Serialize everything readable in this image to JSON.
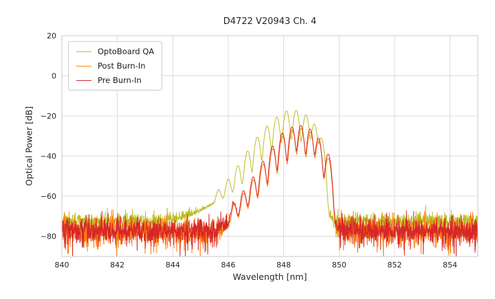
{
  "chart_data": {
    "type": "line",
    "title": "D4722 V20943 Ch. 4",
    "xlabel": "Wavelength [nm]",
    "ylabel": "Optical Power [dB]",
    "xlim": [
      840,
      855
    ],
    "ylim": [
      -90,
      20
    ],
    "grid": true,
    "legend_position": "upper left",
    "xticks": [
      {
        "v": 840,
        "label": "840"
      },
      {
        "v": 842,
        "label": "842"
      },
      {
        "v": 844,
        "label": "844"
      },
      {
        "v": 846,
        "label": "846"
      },
      {
        "v": 848,
        "label": "848"
      },
      {
        "v": 850,
        "label": "850"
      },
      {
        "v": 852,
        "label": "852"
      },
      {
        "v": 854,
        "label": "854"
      }
    ],
    "yticks": [
      {
        "v": 20,
        "label": "20"
      },
      {
        "v": 0,
        "label": "0"
      },
      {
        "v": -20,
        "label": "−20"
      },
      {
        "v": -40,
        "label": "−40"
      },
      {
        "v": -60,
        "label": "−60"
      },
      {
        "v": -80,
        "label": "−80"
      }
    ],
    "series": [
      {
        "name": "OptoBoard QA",
        "color": "#bcbd22",
        "mode_width": 0.062,
        "modes": [
          [
            845.65,
            -58
          ],
          [
            846.0,
            -52
          ],
          [
            846.35,
            -45
          ],
          [
            846.7,
            -37.5
          ],
          [
            847.05,
            -30.5
          ],
          [
            847.4,
            -25
          ],
          [
            847.75,
            -20.5
          ],
          [
            848.1,
            -17.5
          ],
          [
            848.45,
            -17.2
          ],
          [
            848.8,
            -19.5
          ],
          [
            849.1,
            -24
          ],
          [
            849.35,
            -31
          ]
        ],
        "pedestal": [
          [
            843.8,
            -78
          ],
          [
            844.6,
            -72
          ],
          [
            845.2,
            -66.5
          ],
          [
            845.7,
            -62.5
          ],
          [
            846.1,
            -60
          ],
          [
            846.5,
            -58
          ],
          [
            849.2,
            -60
          ],
          [
            849.55,
            -68
          ],
          [
            849.8,
            -78
          ]
        ],
        "dropouts": [],
        "noise": {
          "mean": -72.5,
          "sigma": 2.1,
          "spike_prob": 0.05,
          "spike_depth": 6
        }
      },
      {
        "name": "Post Burn-In",
        "color": "#ff7f0e",
        "mode_width": 0.06,
        "modes": [
          [
            846.21,
            -65
          ],
          [
            846.56,
            -59
          ],
          [
            846.91,
            -52
          ],
          [
            847.26,
            -44
          ],
          [
            847.61,
            -36.5
          ],
          [
            847.96,
            -30
          ],
          [
            848.31,
            -27
          ],
          [
            848.63,
            -26.3
          ],
          [
            848.96,
            -28
          ],
          [
            849.26,
            -32.5
          ],
          [
            849.6,
            -41
          ]
        ],
        "pedestal": [
          [
            845.7,
            -82
          ],
          [
            846.2,
            -74
          ],
          [
            846.7,
            -68
          ],
          [
            847.3,
            -62.5
          ],
          [
            848.3,
            -59
          ],
          [
            849.1,
            -62
          ],
          [
            849.5,
            -67
          ],
          [
            849.75,
            -75
          ],
          [
            850.0,
            -83
          ]
        ],
        "dropouts": [
          846.1,
          849.78
        ],
        "noise": {
          "mean": -77.5,
          "sigma": 3.4,
          "spike_prob": 0.1,
          "spike_depth": 9
        }
      },
      {
        "name": "Pre Burn-In",
        "color": "#d62728",
        "mode_width": 0.06,
        "modes": [
          [
            846.2,
            -64
          ],
          [
            846.55,
            -57.5
          ],
          [
            846.9,
            -50.5
          ],
          [
            847.25,
            -42.5
          ],
          [
            847.6,
            -35
          ],
          [
            847.95,
            -28.5
          ],
          [
            848.3,
            -25.5
          ],
          [
            848.62,
            -24.8
          ],
          [
            848.95,
            -26.5
          ],
          [
            849.25,
            -31
          ],
          [
            849.6,
            -39
          ]
        ],
        "pedestal": [
          [
            845.6,
            -82
          ],
          [
            846.2,
            -73
          ],
          [
            846.7,
            -67
          ],
          [
            847.3,
            -61.5
          ],
          [
            848.3,
            -58
          ],
          [
            849.1,
            -61
          ],
          [
            849.5,
            -66
          ],
          [
            849.75,
            -74
          ],
          [
            850.0,
            -82
          ]
        ],
        "dropouts": [
          846.12,
          849.8
        ],
        "noise": {
          "mean": -77,
          "sigma": 3.3,
          "spike_prob": 0.1,
          "spike_depth": 9
        }
      }
    ],
    "style": {
      "grid_color": "#dcdcdc",
      "spine_color": "#c8c8c8",
      "background": "#ffffff"
    }
  }
}
